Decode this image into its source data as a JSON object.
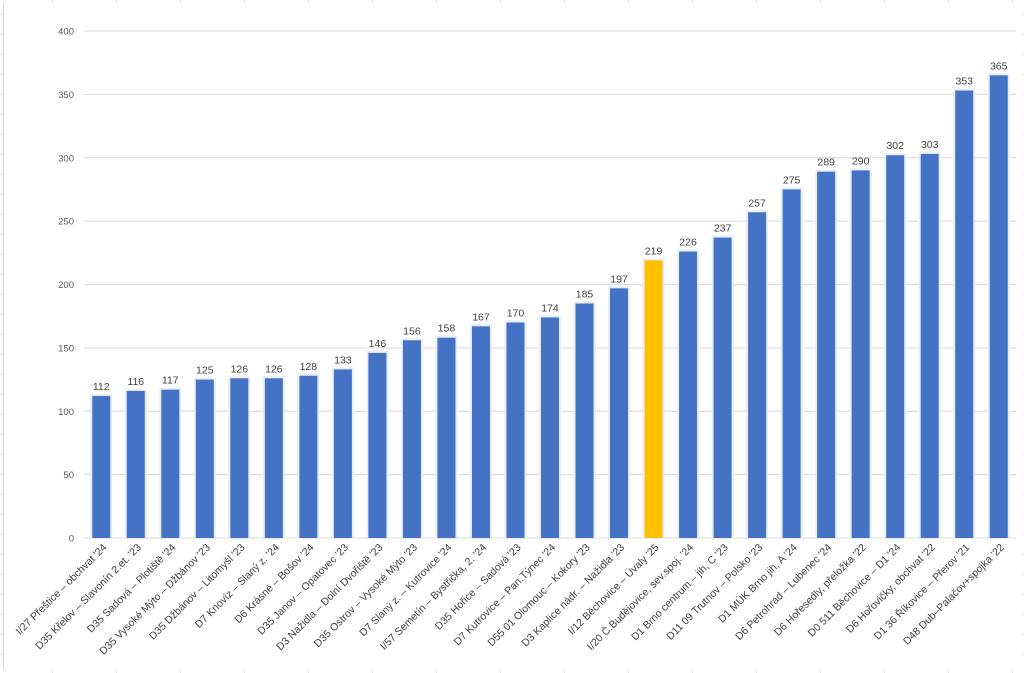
{
  "chart_data": {
    "type": "bar",
    "title": "",
    "xlabel": "",
    "ylabel": "",
    "ylim": [
      0,
      400
    ],
    "yticks": [
      "0",
      "50",
      "100",
      "150",
      "200",
      "250",
      "300",
      "350",
      "400"
    ],
    "grid": true,
    "legend": "none",
    "bar_color": "#4472C4",
    "highlight_color": "#FFC000",
    "highlight_index": 17,
    "categories": [
      "I/27 Přeštice – obchvat '24",
      "D35 Křelov – Slavonín 2.et. '23",
      "D35 Sadová – Plotiště '24",
      "D35 Vysoké Mýto – Džbánov '23",
      "D35 Džbánov – Litomyšl '23",
      "D7 Knovíz – Slaný z. '24",
      "D6 Krásné – Bošov '24",
      "D35 Janov – Opatovec '23",
      "D3 Nažidla – Dolní Dvořiště '23",
      "D35 Ostrov – Vysoké Mýto '23",
      "D7 Slaný z. – Kutrovice '24",
      "I/57 Semetín – Bystřička, 2. '24",
      "D35 Hořice – Sadová '23",
      "D7 Kutrovice – Pan.Týnec '24",
      "D55 01 Olomouc – Kokory '23",
      "D3 Kaplice nádr. – Nažidla '23",
      "I/12 Běchovice – Úvaly '25",
      "I/20 Č.Budějovice, sev.spoj. '24",
      "D1 Brno centrum – jih, C '23",
      "D11 09 Trutnov – Polsko '23",
      "D1 MÚK Brno jih, A '24",
      "D6 Petrohrad – Lubenec '24",
      "D6 Hořesedly, přeložka '22",
      "D0 511 Běchovice – D1 '24",
      "D6 Hořovičky, obchvat '22",
      "D1 36 Říkovice – Přerov '21",
      "D48 Dub–Palačov+spojka '22"
    ],
    "values": [
      112,
      116,
      117,
      125,
      126,
      126,
      128,
      133,
      146,
      156,
      158,
      167,
      170,
      174,
      185,
      197,
      219,
      226,
      237,
      257,
      275,
      289,
      290,
      302,
      303,
      353,
      365
    ]
  }
}
